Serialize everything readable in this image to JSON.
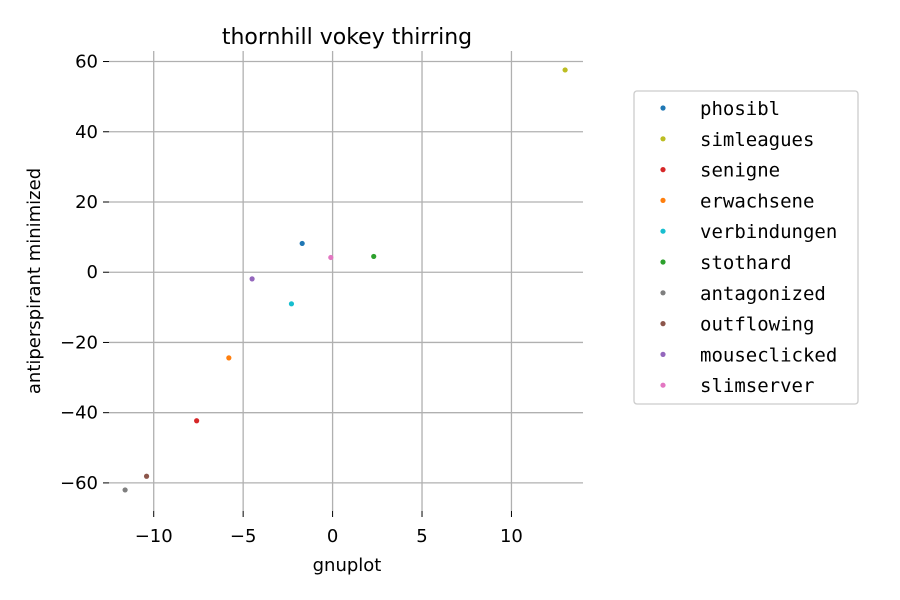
{
  "chart_data": {
    "type": "scatter",
    "title": "thornhill vokey thirring",
    "xlabel": "gnuplot",
    "ylabel": "antiperspirant minimized",
    "xlim": [
      -12.5,
      14
    ],
    "ylim": [
      -68,
      63
    ],
    "xticks": [
      -10,
      -5,
      0,
      5,
      10
    ],
    "yticks": [
      -60,
      -40,
      -20,
      0,
      20,
      40,
      60
    ],
    "xtick_labels": [
      "−10",
      "−5",
      "0",
      "5",
      "10"
    ],
    "ytick_labels": [
      "−60",
      "−40",
      "−20",
      "0",
      "20",
      "40",
      "60"
    ],
    "grid": true,
    "legend_position": "right",
    "series": [
      {
        "name": "phosibl",
        "color": "#1f77b4",
        "x": [
          -1.7
        ],
        "y": [
          8.2
        ]
      },
      {
        "name": "simleagues",
        "color": "#bcbd22",
        "x": [
          13.0
        ],
        "y": [
          57.6
        ]
      },
      {
        "name": "senigne",
        "color": "#d62728",
        "x": [
          -7.6
        ],
        "y": [
          -42.3
        ]
      },
      {
        "name": "erwachsene",
        "color": "#ff7f0e",
        "x": [
          -5.8
        ],
        "y": [
          -24.4
        ]
      },
      {
        "name": "verbindungen",
        "color": "#17becf",
        "x": [
          -2.3
        ],
        "y": [
          -9.0
        ]
      },
      {
        "name": "stothard",
        "color": "#2ca02c",
        "x": [
          2.3
        ],
        "y": [
          4.5
        ]
      },
      {
        "name": "antagonized",
        "color": "#7f7f7f",
        "x": [
          -11.6
        ],
        "y": [
          -62.0
        ]
      },
      {
        "name": "outflowing",
        "color": "#8c564b",
        "x": [
          -10.4
        ],
        "y": [
          -58.1
        ]
      },
      {
        "name": "mouseclicked",
        "color": "#9467bd",
        "x": [
          -4.5
        ],
        "y": [
          -1.9
        ]
      },
      {
        "name": "slimserver",
        "color": "#e377c2",
        "x": [
          -0.1
        ],
        "y": [
          4.2
        ]
      }
    ]
  }
}
